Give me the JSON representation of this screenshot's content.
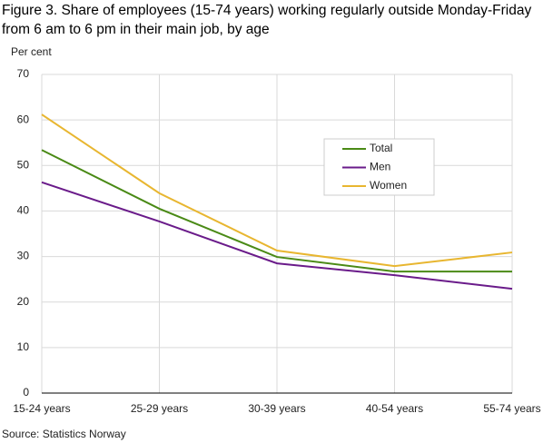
{
  "chart_data": {
    "type": "line",
    "title": [
      "Figure 3. Share of employees (15-74 years) working regularly outside Monday-Friday",
      "from 6 am to 6 pm in their main job, by age"
    ],
    "y_label": "Per cent",
    "source": "Source: Statistics Norway",
    "categories": [
      "15-24 years",
      "25-29 years",
      "30-39 years",
      "40-54 years",
      "55-74 years"
    ],
    "series": [
      {
        "name": "Total",
        "color": "#4a8a16",
        "values": [
          53.4,
          40.5,
          29.9,
          26.7,
          26.7
        ]
      },
      {
        "name": "Men",
        "color": "#6a1b8a",
        "values": [
          46.3,
          37.7,
          28.5,
          25.9,
          22.9
        ]
      },
      {
        "name": "Women",
        "color": "#e8b630",
        "values": [
          61.2,
          43.9,
          31.3,
          27.9,
          30.9
        ]
      }
    ],
    "ylim": [
      0,
      70
    ],
    "yticks": [
      0,
      10,
      20,
      30,
      40,
      50,
      60,
      70
    ],
    "grid": true
  }
}
